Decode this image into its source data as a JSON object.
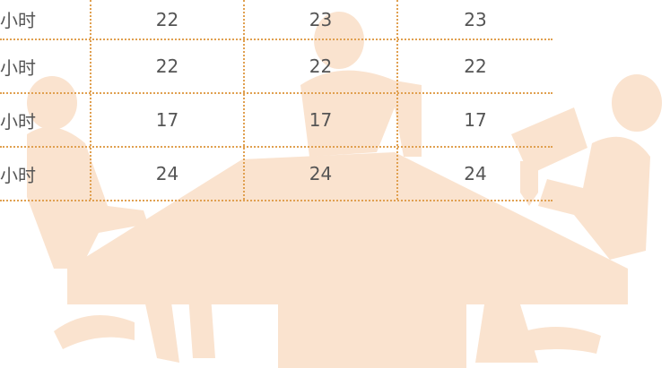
{
  "table": {
    "rows": [
      [
        "小时",
        22,
        23,
        23
      ],
      [
        "小时",
        22,
        22,
        22
      ],
      [
        "小时",
        17,
        17,
        17
      ],
      [
        "小时",
        24,
        24,
        24
      ]
    ]
  }
}
